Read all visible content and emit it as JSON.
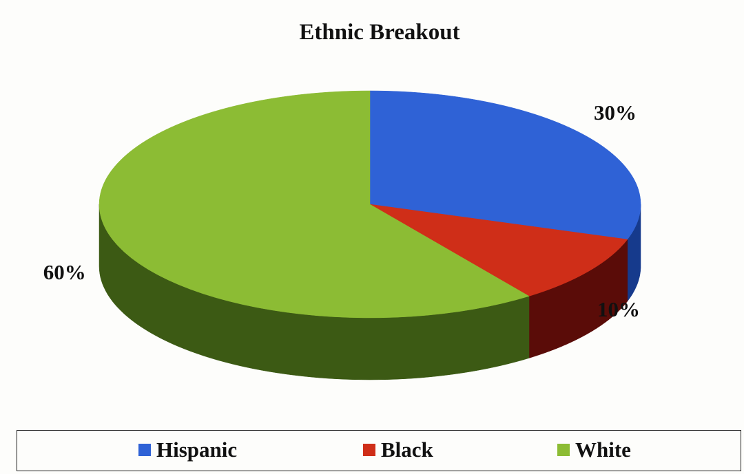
{
  "chart_data": {
    "type": "pie",
    "title": "Ethnic Breakout",
    "slices": [
      {
        "label": "Hispanic",
        "value": 30,
        "data_label": "30%",
        "color": "#2f62d6",
        "side_color": "#163a8c"
      },
      {
        "label": "Black",
        "value": 10,
        "data_label": "10%",
        "color": "#cf2e18",
        "side_color": "#5a0c08"
      },
      {
        "label": "White",
        "value": 60,
        "data_label": "60%",
        "color": "#8cbc34",
        "side_color": "#3c5a14"
      }
    ],
    "legend": {
      "placement": "bottom",
      "entries": [
        "Hispanic",
        "Black",
        "White"
      ]
    },
    "style": "3d"
  }
}
